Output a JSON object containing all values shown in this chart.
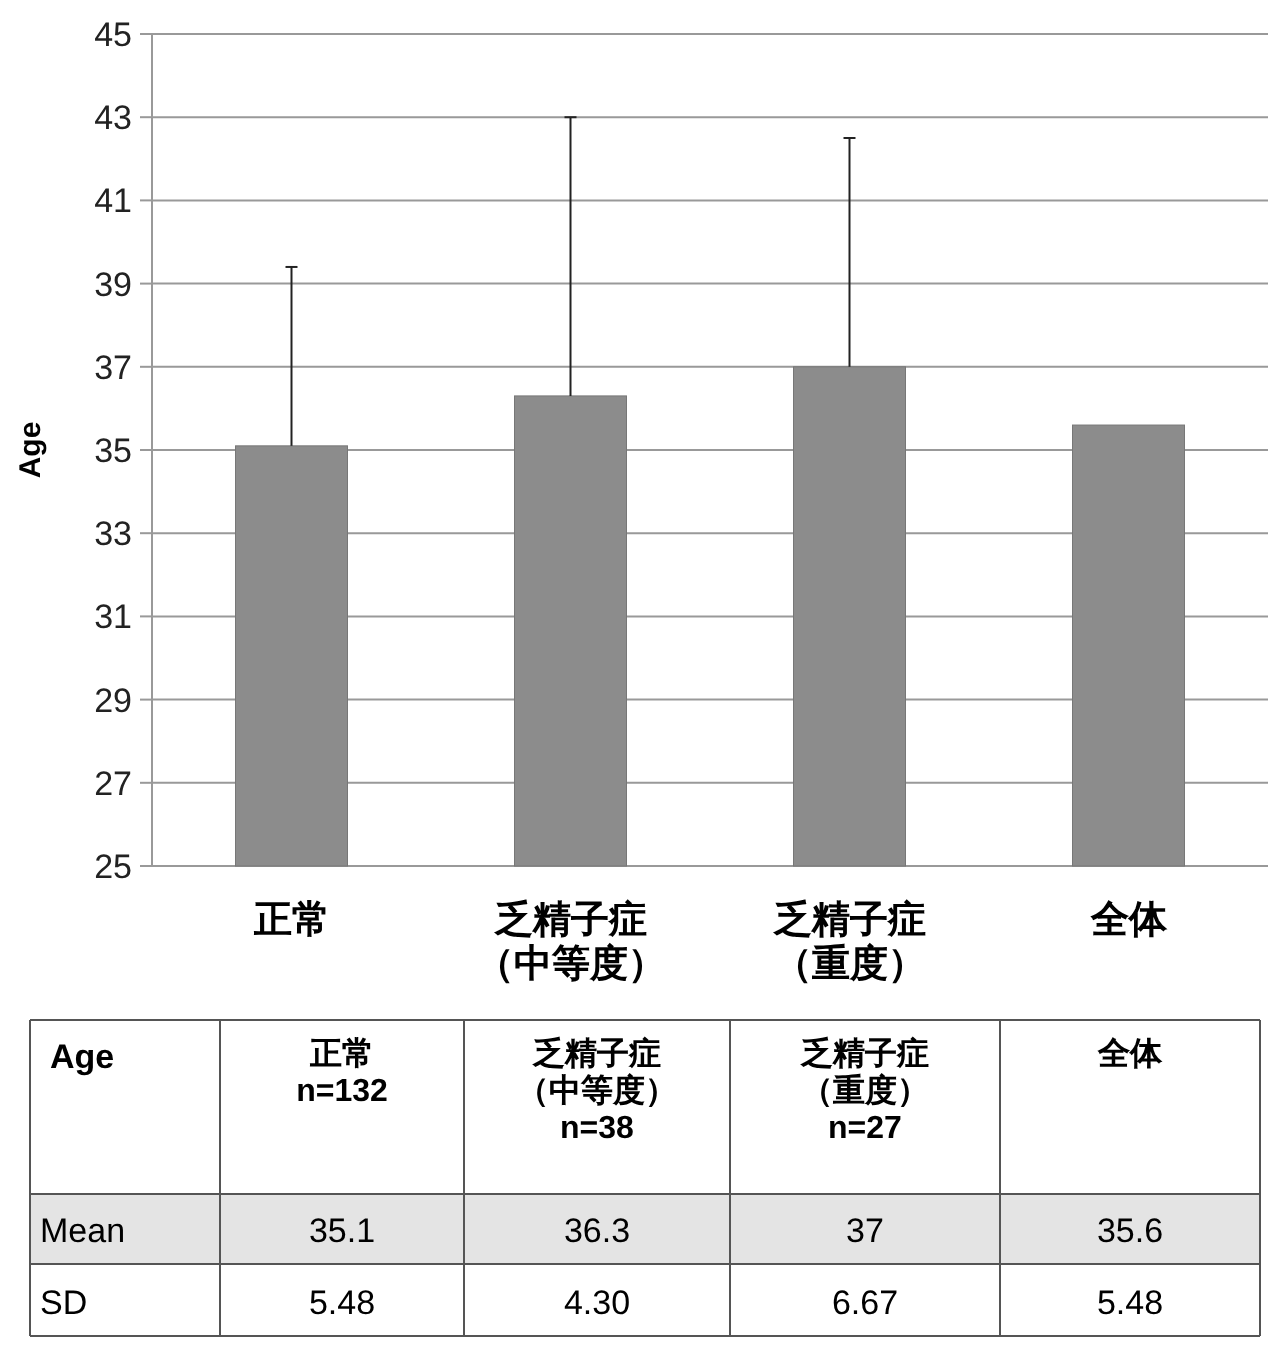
{
  "chart_data": {
    "type": "bar",
    "ylabel": "Age",
    "categories": [
      "正常",
      "乏精子症（中等度）",
      "乏精子症（重度）",
      "全体"
    ],
    "values": [
      35.1,
      36.3,
      37,
      35.6
    ],
    "color": "#8c8c8c",
    "errors": [
      [
        35.1,
        39.4
      ],
      [
        36.3,
        43.0
      ],
      [
        37,
        42.5
      ],
      null
    ],
    "ylim": [
      25,
      45
    ],
    "yticks": [
      25,
      27,
      29,
      31,
      33,
      35,
      37,
      39,
      41,
      43,
      45
    ],
    "grid": "y",
    "data_labels": true,
    "annotations": [
      "Age",
      "Mean",
      "SD",
      "n=132",
      "n=38",
      "n=27",
      "5.48",
      "4.30",
      "6.67",
      "5.48"
    ]
  }
}
